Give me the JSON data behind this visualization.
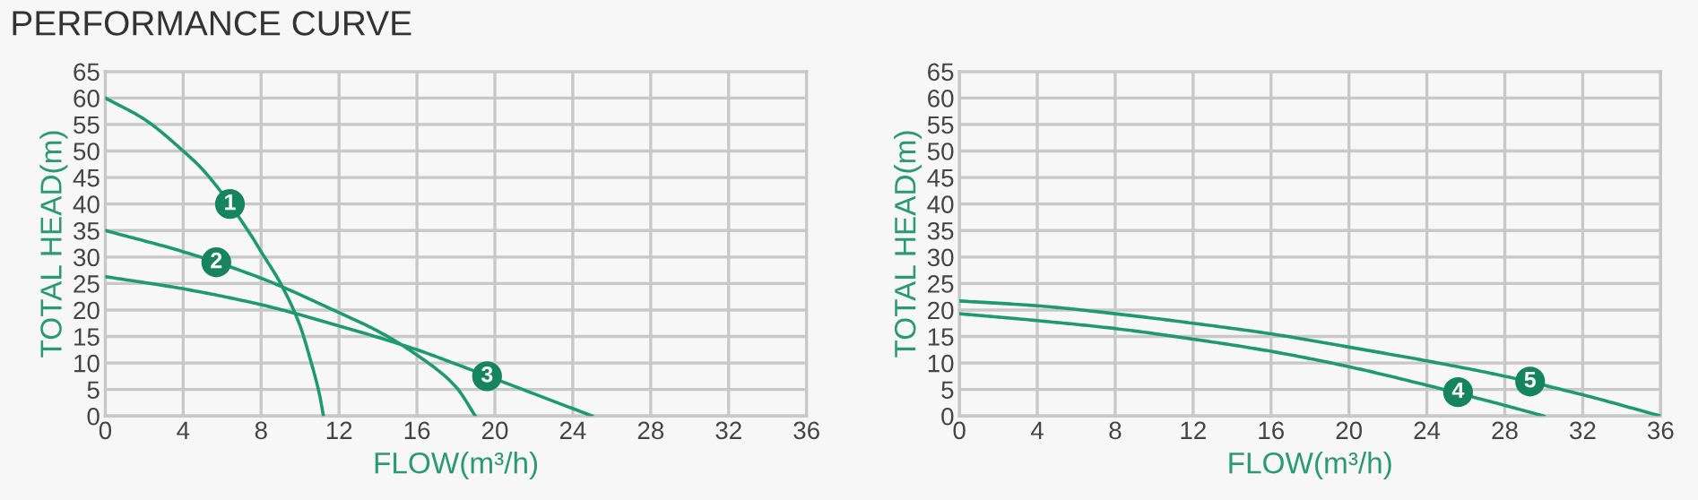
{
  "chart_data": [
    {
      "type": "line",
      "title": "PERFORMANCE CURVE",
      "xlabel": "FLOW(m³/h)",
      "ylabel": "TOTAL HEAD(m)",
      "xlim": [
        0,
        36
      ],
      "ylim": [
        0,
        65
      ],
      "xticks": [
        0,
        4,
        8,
        12,
        16,
        20,
        24,
        28,
        32,
        36
      ],
      "yticks": [
        0,
        5,
        10,
        15,
        20,
        25,
        30,
        35,
        40,
        45,
        50,
        55,
        60,
        65
      ],
      "grid": true,
      "marker": "none",
      "line_style": "solid",
      "series": [
        {
          "color": "#1f9a6e",
          "x": [
            0,
            2,
            4,
            5,
            7.5,
            8,
            9,
            10,
            10.5,
            11,
            11.2
          ],
          "values": [
            60,
            56,
            50,
            46.5,
            34,
            31,
            25,
            17,
            11,
            4,
            0
          ]
        },
        {
          "color": "#1f9a6e",
          "x": [
            0,
            4,
            8,
            12,
            14,
            16,
            18,
            19
          ],
          "values": [
            35,
            31,
            26,
            19.5,
            16,
            11.5,
            5.5,
            0
          ]
        },
        {
          "color": "#1f9a6e",
          "x": [
            0,
            4,
            8,
            12,
            16,
            18,
            22,
            25
          ],
          "values": [
            26.3,
            24,
            21,
            17,
            12.5,
            9.8,
            4.2,
            0
          ]
        }
      ],
      "annotations": [
        {
          "text": "1",
          "x": 6.4,
          "y": 40
        },
        {
          "text": "2",
          "x": 5.7,
          "y": 29
        },
        {
          "text": "3",
          "x": 19.6,
          "y": 7.5
        }
      ]
    },
    {
      "type": "line",
      "xlabel": "FLOW(m³/h)",
      "ylabel": "TOTAL HEAD(m)",
      "xlim": [
        0,
        36
      ],
      "ylim": [
        0,
        65
      ],
      "xticks": [
        0,
        4,
        8,
        12,
        16,
        20,
        24,
        28,
        32,
        36
      ],
      "yticks": [
        0,
        5,
        10,
        15,
        20,
        25,
        30,
        35,
        40,
        45,
        50,
        55,
        60,
        65
      ],
      "grid": true,
      "marker": "none",
      "line_style": "solid",
      "series": [
        {
          "color": "#1f9a6e",
          "x": [
            0,
            4,
            8,
            12,
            16,
            20,
            24,
            28,
            30
          ],
          "values": [
            19.3,
            18,
            16.5,
            14.5,
            12.2,
            9.3,
            5.8,
            2,
            0
          ]
        },
        {
          "color": "#1f9a6e",
          "x": [
            0,
            4,
            8,
            12,
            16,
            20,
            24,
            28,
            32,
            36
          ],
          "values": [
            21.7,
            20.8,
            19.3,
            17.5,
            15.5,
            13,
            10.4,
            7.5,
            4,
            0
          ]
        }
      ],
      "annotations": [
        {
          "text": "4",
          "x": 25.6,
          "y": 4.5
        },
        {
          "text": "5",
          "x": 29.3,
          "y": 6.5
        }
      ]
    }
  ]
}
